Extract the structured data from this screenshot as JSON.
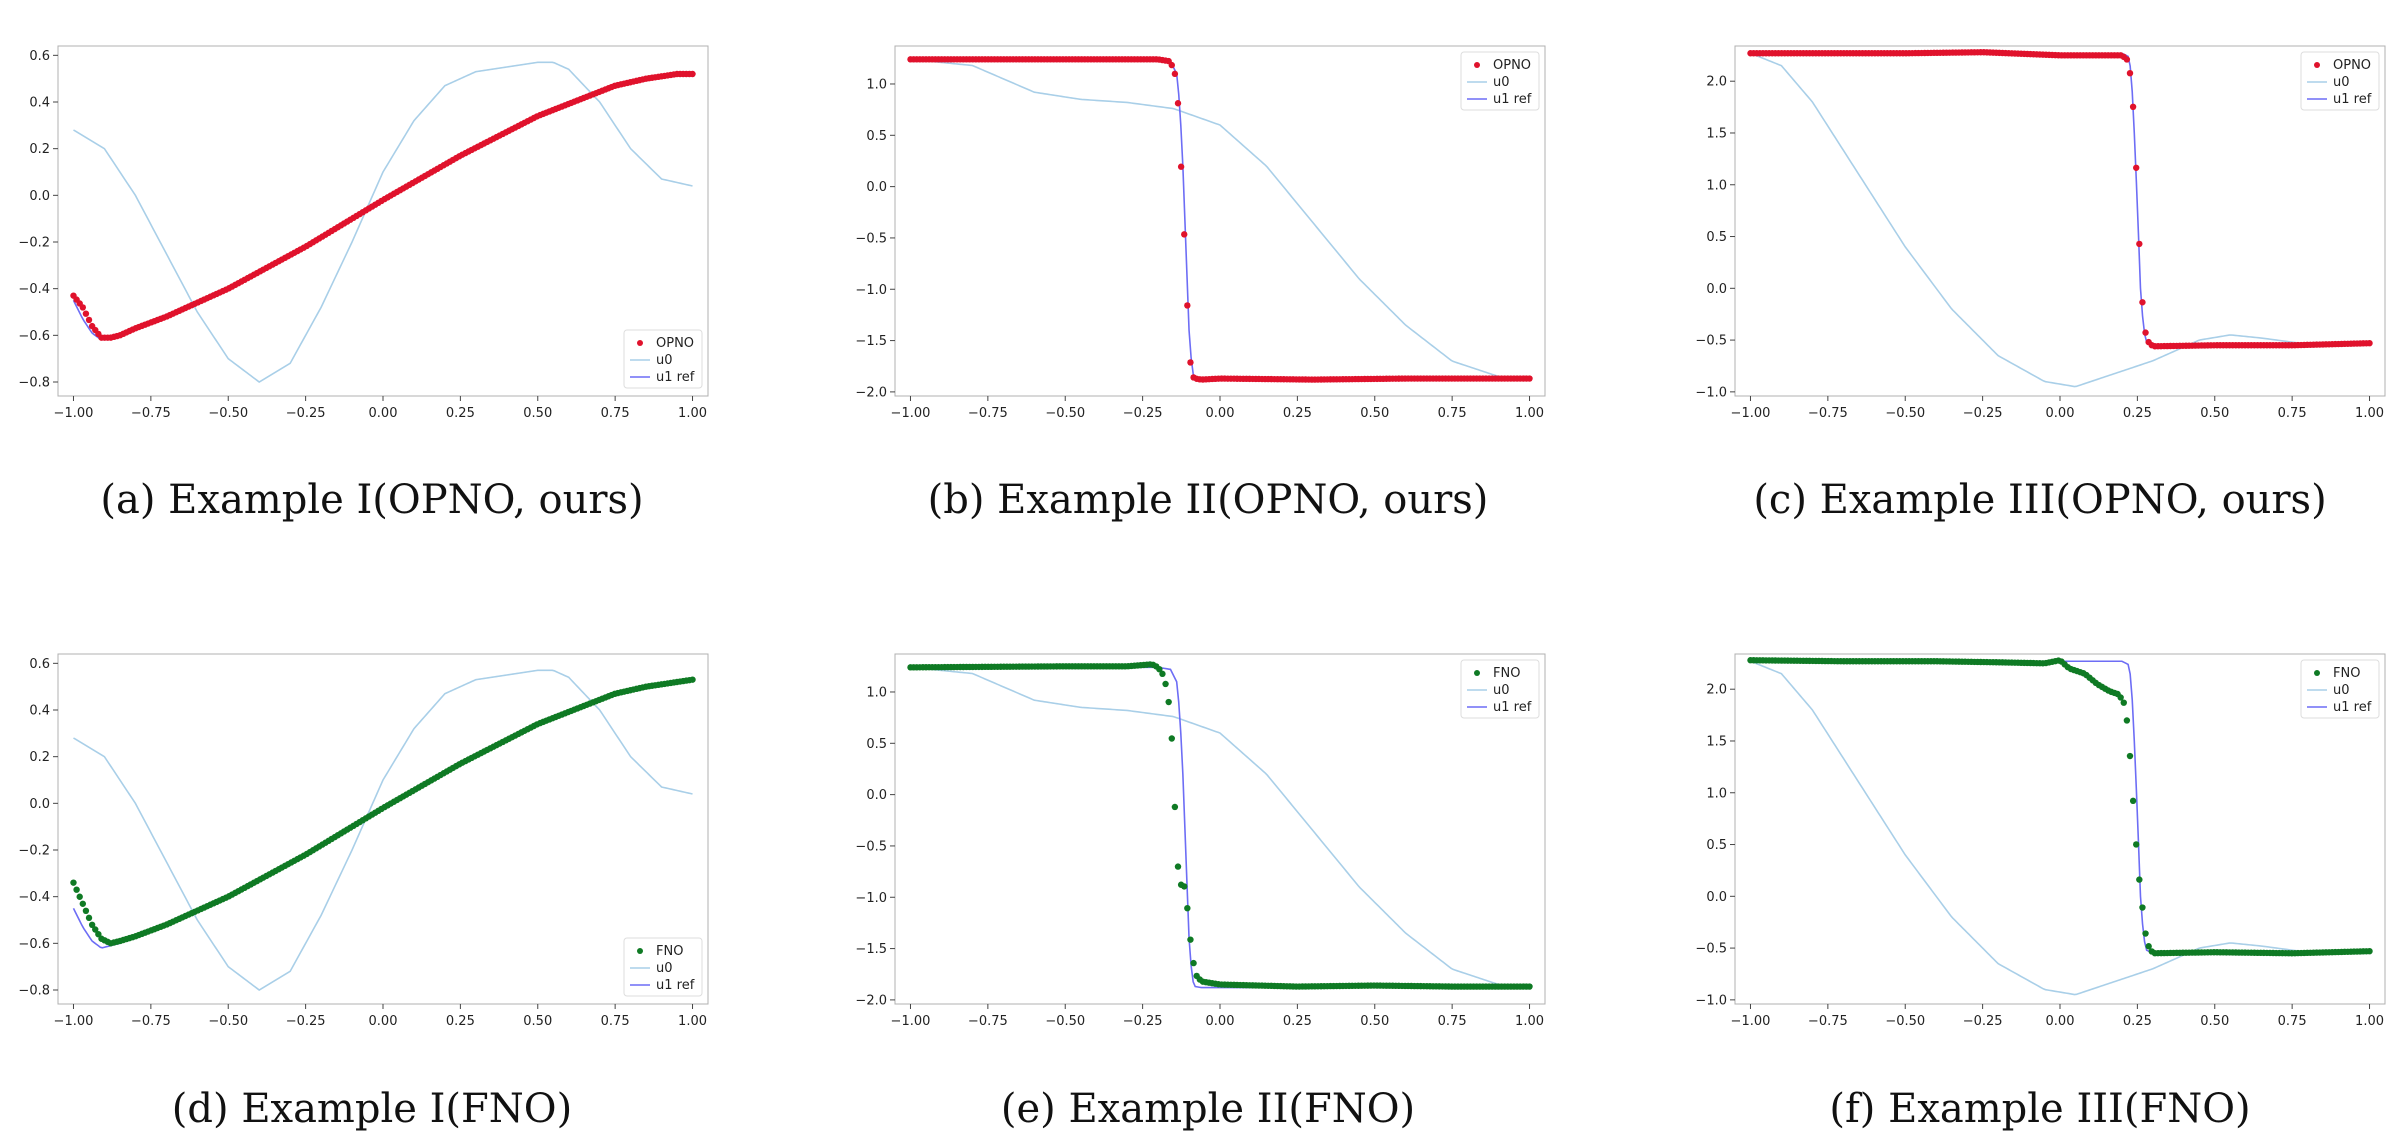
{
  "colors": {
    "opno": "#e0122c",
    "fno": "#0f7a24",
    "u0": "#a9cfe8",
    "u1ref": "#6d6df5",
    "frame": "#b0b0b0"
  },
  "panels": [
    {
      "caption": "(a) Example I(OPNO, ours)",
      "legend": {
        "method": "OPNO",
        "u0": "u0",
        "u1ref": "u1 ref",
        "placement": "bottom-right"
      }
    },
    {
      "caption": "(b) Example II(OPNO, ours)",
      "legend": {
        "method": "OPNO",
        "u0": "u0",
        "u1ref": "u1 ref",
        "placement": "top-right"
      }
    },
    {
      "caption": "(c) Example III(OPNO, ours)",
      "legend": {
        "method": "OPNO",
        "u0": "u0",
        "u1ref": "u1 ref",
        "placement": "top-right"
      }
    },
    {
      "caption": "(d) Example I(FNO)",
      "legend": {
        "method": "FNO",
        "u0": "u0",
        "u1ref": "u1 ref",
        "placement": "bottom-right"
      }
    },
    {
      "caption": "(e) Example II(FNO)",
      "legend": {
        "method": "FNO",
        "u0": "u0",
        "u1ref": "u1 ref",
        "placement": "top-right"
      }
    },
    {
      "caption": "(f) Example III(FNO)",
      "legend": {
        "method": "FNO",
        "u0": "u0",
        "u1ref": "u1 ref",
        "placement": "top-right"
      }
    }
  ],
  "chart_data": [
    {
      "type": "line",
      "xlim": [
        -1.05,
        1.05
      ],
      "ylim": [
        -0.86,
        0.64
      ],
      "xticks": [
        "-1.00",
        "-0.75",
        "-0.50",
        "-0.25",
        "0.00",
        "0.25",
        "0.50",
        "0.75",
        "1.00"
      ],
      "yticks": [
        "-0.8",
        "-0.6",
        "-0.4",
        "-0.2",
        "0.0",
        "0.2",
        "0.4",
        "0.6"
      ],
      "u0": {
        "x": [
          -1,
          -0.9,
          -0.8,
          -0.7,
          -0.6,
          -0.5,
          -0.4,
          -0.3,
          -0.2,
          -0.1,
          0,
          0.1,
          0.2,
          0.3,
          0.4,
          0.5,
          0.55,
          0.6,
          0.7,
          0.8,
          0.9,
          1
        ],
        "y": [
          0.28,
          0.2,
          0.0,
          -0.25,
          -0.5,
          -0.7,
          -0.8,
          -0.72,
          -0.48,
          -0.2,
          0.1,
          0.32,
          0.47,
          0.53,
          0.55,
          0.57,
          0.57,
          0.54,
          0.4,
          0.2,
          0.07,
          0.04
        ]
      },
      "u1ref": {
        "x": [
          -1,
          -0.97,
          -0.94,
          -0.91,
          -0.88,
          -0.85,
          -0.8,
          -0.7,
          -0.5,
          -0.25,
          0,
          0.25,
          0.5,
          0.75,
          0.85,
          0.95,
          1
        ],
        "y": [
          -0.45,
          -0.53,
          -0.59,
          -0.62,
          -0.61,
          -0.6,
          -0.57,
          -0.52,
          -0.4,
          -0.22,
          -0.02,
          0.17,
          0.34,
          0.47,
          0.5,
          0.52,
          0.52
        ]
      },
      "points": {
        "series": "OPNO",
        "n": 200,
        "x": [
          -1,
          -0.97,
          -0.94,
          -0.91,
          -0.88,
          -0.85,
          -0.8,
          -0.7,
          -0.5,
          -0.25,
          0,
          0.25,
          0.5,
          0.75,
          0.85,
          0.95,
          1
        ],
        "y": [
          -0.43,
          -0.48,
          -0.56,
          -0.61,
          -0.61,
          -0.6,
          -0.57,
          -0.52,
          -0.4,
          -0.22,
          -0.02,
          0.17,
          0.34,
          0.47,
          0.5,
          0.52,
          0.52
        ]
      }
    },
    {
      "type": "line",
      "xlim": [
        -1.05,
        1.05
      ],
      "ylim": [
        -2.04,
        1.37
      ],
      "xticks": [
        "-1.00",
        "-0.75",
        "-0.50",
        "-0.25",
        "0.00",
        "0.25",
        "0.50",
        "0.75",
        "1.00"
      ],
      "yticks": [
        "-2.0",
        "-1.5",
        "-1.0",
        "-0.5",
        "0.0",
        "0.5",
        "1.0"
      ],
      "u0": {
        "x": [
          -1,
          -0.8,
          -0.6,
          -0.45,
          -0.3,
          -0.15,
          0,
          0.15,
          0.3,
          0.45,
          0.6,
          0.75,
          0.9,
          1
        ],
        "y": [
          1.24,
          1.18,
          0.92,
          0.85,
          0.82,
          0.76,
          0.6,
          0.2,
          -0.35,
          -0.9,
          -1.35,
          -1.7,
          -1.85,
          -1.88
        ]
      },
      "u1ref": {
        "x": [
          -1,
          -0.2,
          -0.16,
          -0.14,
          -0.13,
          -0.12,
          -0.11,
          -0.1,
          -0.09,
          -0.08,
          -0.06,
          0,
          0.5,
          1
        ],
        "y": [
          1.24,
          1.24,
          1.22,
          1.1,
          0.8,
          0.2,
          -0.6,
          -1.4,
          -1.8,
          -1.87,
          -1.88,
          -1.88,
          -1.88,
          -1.88
        ]
      },
      "points": {
        "series": "OPNO",
        "n": 200,
        "x": [
          -1,
          -0.2,
          -0.16,
          -0.14,
          -0.13,
          -0.12,
          -0.11,
          -0.1,
          -0.09,
          -0.08,
          -0.06,
          0,
          0.3,
          0.6,
          1
        ],
        "y": [
          1.24,
          1.24,
          1.22,
          1.05,
          0.5,
          -0.2,
          -0.8,
          -1.6,
          -1.85,
          -1.87,
          -1.88,
          -1.87,
          -1.88,
          -1.87,
          -1.87
        ]
      }
    },
    {
      "type": "line",
      "xlim": [
        -1.05,
        1.05
      ],
      "ylim": [
        -1.04,
        2.34
      ],
      "xticks": [
        "-1.00",
        "-0.75",
        "-0.50",
        "-0.25",
        "0.00",
        "0.25",
        "0.50",
        "0.75",
        "1.00"
      ],
      "yticks": [
        "-1.0",
        "-0.5",
        "0.0",
        "0.5",
        "1.0",
        "1.5",
        "2.0"
      ],
      "u0": {
        "x": [
          -1,
          -0.9,
          -0.8,
          -0.65,
          -0.5,
          -0.35,
          -0.2,
          -0.05,
          0.05,
          0.15,
          0.3,
          0.45,
          0.55,
          0.65,
          0.8,
          1
        ],
        "y": [
          2.27,
          2.15,
          1.8,
          1.1,
          0.4,
          -0.2,
          -0.65,
          -0.9,
          -0.95,
          -0.85,
          -0.7,
          -0.5,
          -0.45,
          -0.48,
          -0.54,
          -0.55
        ]
      },
      "u1ref": {
        "x": [
          -1,
          0.2,
          0.22,
          0.23,
          0.24,
          0.25,
          0.26,
          0.27,
          0.28,
          0.3,
          0.5,
          1
        ],
        "y": [
          2.27,
          2.27,
          2.24,
          2.1,
          1.5,
          0.8,
          0.0,
          -0.4,
          -0.52,
          -0.55,
          -0.55,
          -0.55
        ]
      },
      "points": {
        "series": "OPNO",
        "n": 200,
        "x": [
          -1,
          -0.5,
          -0.25,
          0.0,
          0.2,
          0.22,
          0.23,
          0.24,
          0.25,
          0.26,
          0.27,
          0.28,
          0.3,
          0.5,
          0.75,
          1
        ],
        "y": [
          2.27,
          2.27,
          2.28,
          2.25,
          2.25,
          2.2,
          2.0,
          1.6,
          0.9,
          0.15,
          -0.3,
          -0.5,
          -0.56,
          -0.55,
          -0.55,
          -0.53
        ]
      }
    },
    {
      "type": "line",
      "xlim": [
        -1.05,
        1.05
      ],
      "ylim": [
        -0.86,
        0.64
      ],
      "xticks": [
        "-1.00",
        "-0.75",
        "-0.50",
        "-0.25",
        "0.00",
        "0.25",
        "0.50",
        "0.75",
        "1.00"
      ],
      "yticks": [
        "-0.8",
        "-0.6",
        "-0.4",
        "-0.2",
        "0.0",
        "0.2",
        "0.4",
        "0.6"
      ],
      "u0": {
        "x": [
          -1,
          -0.9,
          -0.8,
          -0.7,
          -0.6,
          -0.5,
          -0.4,
          -0.3,
          -0.2,
          -0.1,
          0,
          0.1,
          0.2,
          0.3,
          0.4,
          0.5,
          0.55,
          0.6,
          0.7,
          0.8,
          0.9,
          1
        ],
        "y": [
          0.28,
          0.2,
          0.0,
          -0.25,
          -0.5,
          -0.7,
          -0.8,
          -0.72,
          -0.48,
          -0.2,
          0.1,
          0.32,
          0.47,
          0.53,
          0.55,
          0.57,
          0.57,
          0.54,
          0.4,
          0.2,
          0.07,
          0.04
        ]
      },
      "u1ref": {
        "x": [
          -1,
          -0.97,
          -0.94,
          -0.91,
          -0.88,
          -0.85,
          -0.8,
          -0.7,
          -0.5,
          -0.25,
          0,
          0.25,
          0.5,
          0.75,
          0.85,
          0.95,
          1
        ],
        "y": [
          -0.45,
          -0.53,
          -0.59,
          -0.62,
          -0.61,
          -0.6,
          -0.57,
          -0.52,
          -0.4,
          -0.22,
          -0.02,
          0.17,
          0.34,
          0.47,
          0.5,
          0.52,
          0.53
        ]
      },
      "points": {
        "series": "FNO",
        "n": 200,
        "x": [
          -1,
          -0.97,
          -0.94,
          -0.91,
          -0.88,
          -0.85,
          -0.8,
          -0.7,
          -0.5,
          -0.25,
          0,
          0.25,
          0.5,
          0.75,
          0.85,
          0.95,
          1
        ],
        "y": [
          -0.34,
          -0.43,
          -0.52,
          -0.58,
          -0.6,
          -0.59,
          -0.57,
          -0.52,
          -0.4,
          -0.22,
          -0.02,
          0.17,
          0.34,
          0.47,
          0.5,
          0.52,
          0.53
        ]
      }
    },
    {
      "type": "line",
      "xlim": [
        -1.05,
        1.05
      ],
      "ylim": [
        -2.04,
        1.37
      ],
      "xticks": [
        "-1.00",
        "-0.75",
        "-0.50",
        "-0.25",
        "0.00",
        "0.25",
        "0.50",
        "0.75",
        "1.00"
      ],
      "yticks": [
        "-2.0",
        "-1.5",
        "-1.0",
        "-0.5",
        "0.0",
        "0.5",
        "1.0"
      ],
      "u0": {
        "x": [
          -1,
          -0.8,
          -0.6,
          -0.45,
          -0.3,
          -0.15,
          0,
          0.15,
          0.3,
          0.45,
          0.6,
          0.75,
          0.9,
          1
        ],
        "y": [
          1.24,
          1.18,
          0.92,
          0.85,
          0.82,
          0.76,
          0.6,
          0.2,
          -0.35,
          -0.9,
          -1.35,
          -1.7,
          -1.85,
          -1.88
        ]
      },
      "u1ref": {
        "x": [
          -1,
          -0.2,
          -0.16,
          -0.14,
          -0.13,
          -0.12,
          -0.11,
          -0.1,
          -0.09,
          -0.08,
          -0.06,
          0,
          0.5,
          1
        ],
        "y": [
          1.24,
          1.24,
          1.22,
          1.1,
          0.8,
          0.2,
          -0.6,
          -1.4,
          -1.8,
          -1.87,
          -1.88,
          -1.88,
          -1.88,
          -1.88
        ]
      },
      "points": {
        "series": "FNO",
        "n": 200,
        "x": [
          -1,
          -0.5,
          -0.3,
          -0.22,
          -0.2,
          -0.18,
          -0.16,
          -0.15,
          -0.14,
          -0.13,
          -0.12,
          -0.11,
          -0.1,
          -0.09,
          -0.08,
          -0.06,
          0,
          0.25,
          0.5,
          0.75,
          1
        ],
        "y": [
          1.24,
          1.25,
          1.25,
          1.27,
          1.24,
          1.15,
          0.8,
          0.2,
          -0.55,
          -0.9,
          -0.85,
          -0.95,
          -1.3,
          -1.55,
          -1.75,
          -1.82,
          -1.85,
          -1.87,
          -1.86,
          -1.87,
          -1.87
        ]
      }
    },
    {
      "type": "line",
      "xlim": [
        -1.05,
        1.05
      ],
      "ylim": [
        -1.04,
        2.34
      ],
      "xticks": [
        "-1.00",
        "-0.75",
        "-0.50",
        "-0.25",
        "0.00",
        "0.25",
        "0.50",
        "0.75",
        "1.00"
      ],
      "yticks": [
        "-1.0",
        "-0.5",
        "0.0",
        "0.5",
        "1.0",
        "1.5",
        "2.0"
      ],
      "u0": {
        "x": [
          -1,
          -0.9,
          -0.8,
          -0.65,
          -0.5,
          -0.35,
          -0.2,
          -0.05,
          0.05,
          0.15,
          0.3,
          0.45,
          0.55,
          0.65,
          0.8,
          1
        ],
        "y": [
          2.27,
          2.15,
          1.8,
          1.1,
          0.4,
          -0.2,
          -0.65,
          -0.9,
          -0.95,
          -0.85,
          -0.7,
          -0.5,
          -0.45,
          -0.48,
          -0.54,
          -0.55
        ]
      },
      "u1ref": {
        "x": [
          -1,
          0.2,
          0.22,
          0.23,
          0.24,
          0.25,
          0.26,
          0.27,
          0.28,
          0.3,
          0.5,
          1
        ],
        "y": [
          2.27,
          2.27,
          2.24,
          2.1,
          1.5,
          0.8,
          0.0,
          -0.4,
          -0.52,
          -0.55,
          -0.55,
          -0.55
        ]
      },
      "points": {
        "series": "FNO",
        "n": 200,
        "x": [
          -1,
          -0.7,
          -0.4,
          -0.2,
          -0.05,
          0.0,
          0.03,
          0.08,
          0.12,
          0.16,
          0.19,
          0.21,
          0.22,
          0.23,
          0.24,
          0.25,
          0.26,
          0.27,
          0.28,
          0.3,
          0.5,
          0.75,
          1
        ],
        "y": [
          2.28,
          2.27,
          2.27,
          2.26,
          2.25,
          2.28,
          2.2,
          2.15,
          2.05,
          1.98,
          1.95,
          1.85,
          1.6,
          1.2,
          0.75,
          0.35,
          0.05,
          -0.2,
          -0.45,
          -0.55,
          -0.54,
          -0.55,
          -0.53
        ]
      }
    }
  ]
}
